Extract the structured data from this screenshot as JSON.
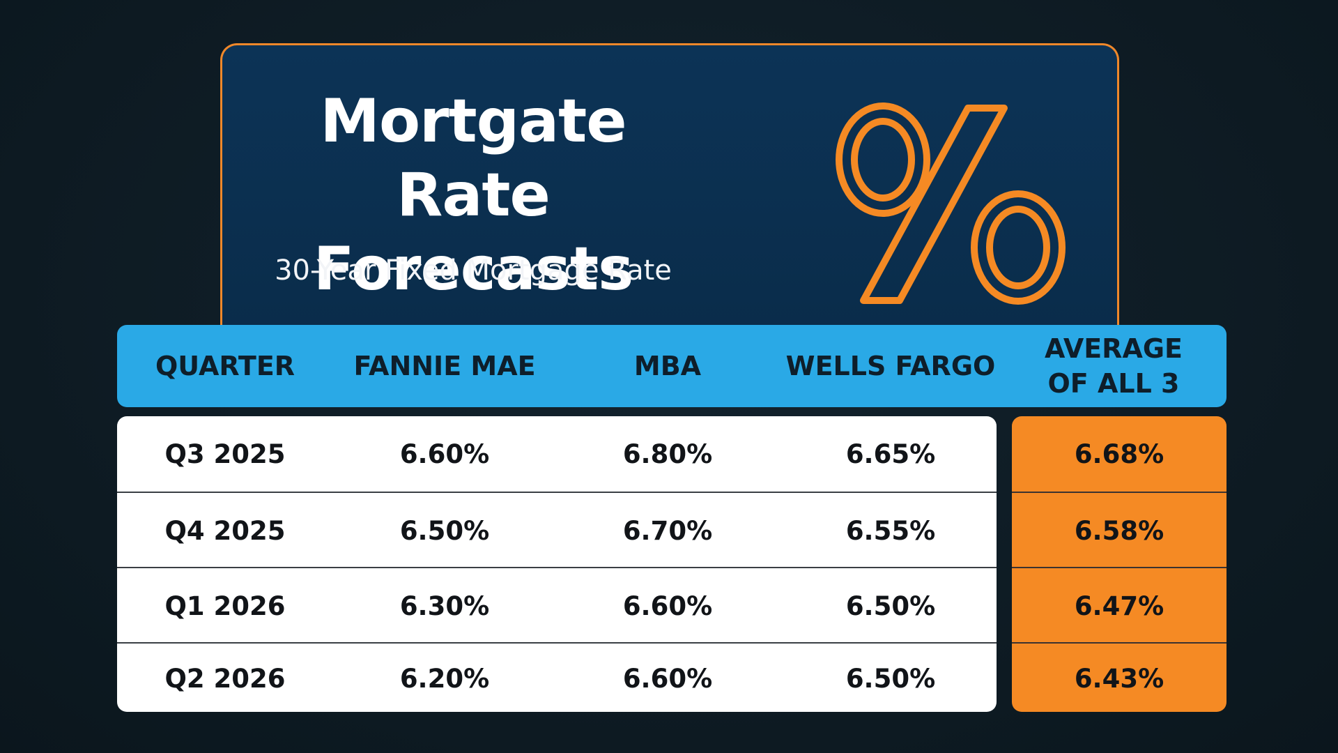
{
  "header": {
    "title_line1": "Mortgate Rate",
    "title_line2": "Forecasts",
    "subtitle": "30-Year Fixed Mortgage Rate",
    "icon": "percent-icon"
  },
  "colors": {
    "background": "#0f1c24",
    "header_card": "#0c3356",
    "accent_orange": "#f58a24",
    "table_header_blue": "#2aa9e6",
    "row_white": "#ffffff"
  },
  "chart_data": {
    "type": "table",
    "columns": [
      "QUARTER",
      "FANNIE MAE",
      "MBA",
      "WELLS FARGO",
      "AVERAGE OF ALL 3"
    ],
    "rows": [
      {
        "quarter": "Q3 2025",
        "fannie_mae": "6.60%",
        "mba": "6.80%",
        "wells_fargo": "6.65%",
        "average": "6.68%"
      },
      {
        "quarter": "Q4 2025",
        "fannie_mae": "6.50%",
        "mba": "6.70%",
        "wells_fargo": "6.55%",
        "average": "6.58%"
      },
      {
        "quarter": "Q1 2026",
        "fannie_mae": "6.30%",
        "mba": "6.60%",
        "wells_fargo": "6.50%",
        "average": "6.47%"
      },
      {
        "quarter": "Q2 2026",
        "fannie_mae": "6.20%",
        "mba": "6.60%",
        "wells_fargo": "6.50%",
        "average": "6.43%"
      }
    ]
  }
}
